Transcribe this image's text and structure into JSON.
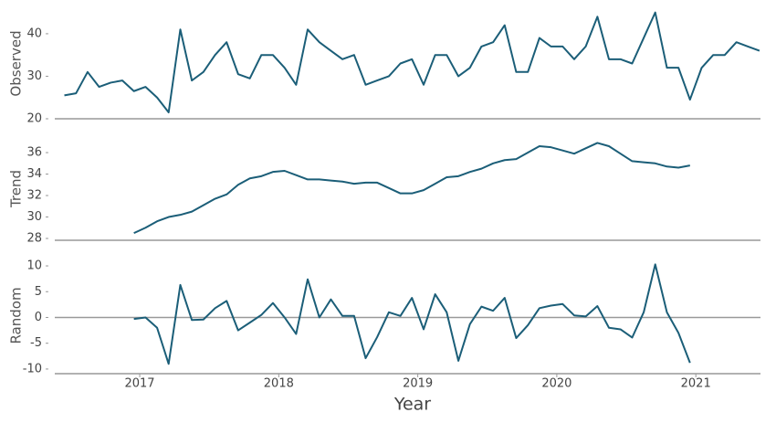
{
  "chart_data": [
    {
      "type": "line",
      "ylabel": "Observed",
      "ylim": [
        20,
        46
      ],
      "yticks": [
        20,
        30,
        40
      ],
      "xlim": [
        2016.389,
        2021.465
      ],
      "x": [
        2016.458,
        2016.542,
        2016.625,
        2016.708,
        2016.792,
        2016.875,
        2016.958,
        2017.042,
        2017.125,
        2017.208,
        2017.292,
        2017.375,
        2017.458,
        2017.542,
        2017.625,
        2017.708,
        2017.792,
        2017.875,
        2017.958,
        2018.042,
        2018.125,
        2018.208,
        2018.292,
        2018.375,
        2018.458,
        2018.542,
        2018.625,
        2018.708,
        2018.792,
        2018.875,
        2018.958,
        2019.042,
        2019.125,
        2019.208,
        2019.292,
        2019.375,
        2019.458,
        2019.542,
        2019.625,
        2019.708,
        2019.792,
        2019.875,
        2019.958,
        2020.042,
        2020.125,
        2020.208,
        2020.292,
        2020.375,
        2020.458,
        2020.542,
        2020.625,
        2020.708,
        2020.792,
        2020.875,
        2020.958,
        2021.042,
        2021.125,
        2021.208,
        2021.292,
        2021.375,
        2021.458
      ],
      "series": [
        {
          "name": "Observed",
          "color": "#1b5e78",
          "values": [
            25.5,
            26,
            31,
            27.5,
            28.5,
            29,
            26.5,
            27.5,
            25,
            21.5,
            41,
            29,
            31,
            35,
            38,
            30.5,
            29.5,
            35,
            35,
            32,
            28,
            41,
            38,
            36,
            34,
            35,
            28,
            29,
            30,
            33,
            34,
            28,
            35,
            35,
            30,
            32,
            37,
            38,
            42,
            31,
            31,
            39,
            37,
            37,
            34,
            37,
            44,
            34,
            34,
            33,
            39,
            45,
            32,
            32,
            24.5,
            32,
            35,
            35,
            38,
            37,
            36
          ]
        }
      ]
    },
    {
      "type": "line",
      "ylabel": "Trend",
      "ylim": [
        27.83,
        37.45
      ],
      "yticks": [
        28,
        30,
        32,
        34,
        36
      ],
      "xlim": [
        2016.389,
        2021.465
      ],
      "x": [
        2016.458,
        2016.542,
        2016.625,
        2016.708,
        2016.792,
        2016.875,
        2016.958,
        2017.042,
        2017.125,
        2017.208,
        2017.292,
        2017.375,
        2017.458,
        2017.542,
        2017.625,
        2017.708,
        2017.792,
        2017.875,
        2017.958,
        2018.042,
        2018.125,
        2018.208,
        2018.292,
        2018.375,
        2018.458,
        2018.542,
        2018.625,
        2018.708,
        2018.792,
        2018.875,
        2018.958,
        2019.042,
        2019.125,
        2019.208,
        2019.292,
        2019.375,
        2019.458,
        2019.542,
        2019.625,
        2019.708,
        2019.792,
        2019.875,
        2019.958,
        2020.042,
        2020.125,
        2020.208,
        2020.292,
        2020.375,
        2020.458,
        2020.542,
        2020.625,
        2020.708,
        2020.792,
        2020.875,
        2020.958,
        2021.042,
        2021.125,
        2021.208,
        2021.292,
        2021.375,
        2021.458
      ],
      "series": [
        {
          "name": "Trend",
          "color": "#1b5e78",
          "values": [
            null,
            null,
            null,
            null,
            null,
            null,
            28.5,
            29,
            29.6,
            30,
            30.2,
            30.5,
            31.1,
            31.7,
            32.1,
            33,
            33.6,
            33.8,
            34.2,
            34.3,
            33.9,
            33.5,
            33.5,
            33.4,
            33.3,
            33.1,
            33.2,
            33.2,
            32.7,
            32.2,
            32.2,
            32.5,
            33.1,
            33.7,
            33.8,
            34.2,
            34.5,
            35,
            35.3,
            35.4,
            36,
            36.6,
            36.5,
            36.2,
            35.9,
            36.4,
            36.9,
            36.6,
            35.9,
            35.2,
            35.1,
            35,
            34.7,
            34.6,
            34.8,
            null,
            null,
            null,
            null,
            null,
            null
          ]
        }
      ]
    },
    {
      "type": "line",
      "ylabel": "Random",
      "ylim": [
        -10.9,
        11.6
      ],
      "yticks": [
        -10,
        -5,
        0,
        5,
        10
      ],
      "hline": 0,
      "xlim": [
        2016.389,
        2021.465
      ],
      "xticks": [
        2017,
        2018,
        2019,
        2020,
        2021
      ],
      "xlabel": "Year",
      "x": [
        2016.458,
        2016.542,
        2016.625,
        2016.708,
        2016.792,
        2016.875,
        2016.958,
        2017.042,
        2017.125,
        2017.208,
        2017.292,
        2017.375,
        2017.458,
        2017.542,
        2017.625,
        2017.708,
        2017.792,
        2017.875,
        2017.958,
        2018.042,
        2018.125,
        2018.208,
        2018.292,
        2018.375,
        2018.458,
        2018.542,
        2018.625,
        2018.708,
        2018.792,
        2018.875,
        2018.958,
        2019.042,
        2019.125,
        2019.208,
        2019.292,
        2019.375,
        2019.458,
        2019.542,
        2019.625,
        2019.708,
        2019.792,
        2019.875,
        2019.958,
        2020.042,
        2020.125,
        2020.208,
        2020.292,
        2020.375,
        2020.458,
        2020.542,
        2020.625,
        2020.708,
        2020.792,
        2020.875,
        2020.958,
        2021.042,
        2021.125,
        2021.208,
        2021.292,
        2021.375,
        2021.458
      ],
      "series": [
        {
          "name": "Random",
          "color": "#1b5e78",
          "values": [
            null,
            null,
            null,
            null,
            null,
            null,
            -0.3,
            0,
            -2,
            -9,
            6.3,
            -0.5,
            -0.4,
            1.8,
            3.2,
            -2.5,
            -1,
            0.5,
            2.8,
            0,
            -3.2,
            7.4,
            0,
            3.5,
            0.3,
            0.3,
            -7.9,
            -3.8,
            1,
            0.3,
            3.8,
            -2.3,
            4.5,
            1,
            -8.4,
            -1.3,
            2.1,
            1.3,
            3.8,
            -4,
            -1.5,
            1.8,
            2.3,
            2.6,
            0.4,
            0.2,
            2.2,
            -2,
            -2.3,
            -3.9,
            1,
            10.3,
            1,
            -3,
            -8.8,
            null,
            null,
            null,
            null,
            null,
            null
          ]
        }
      ]
    }
  ]
}
